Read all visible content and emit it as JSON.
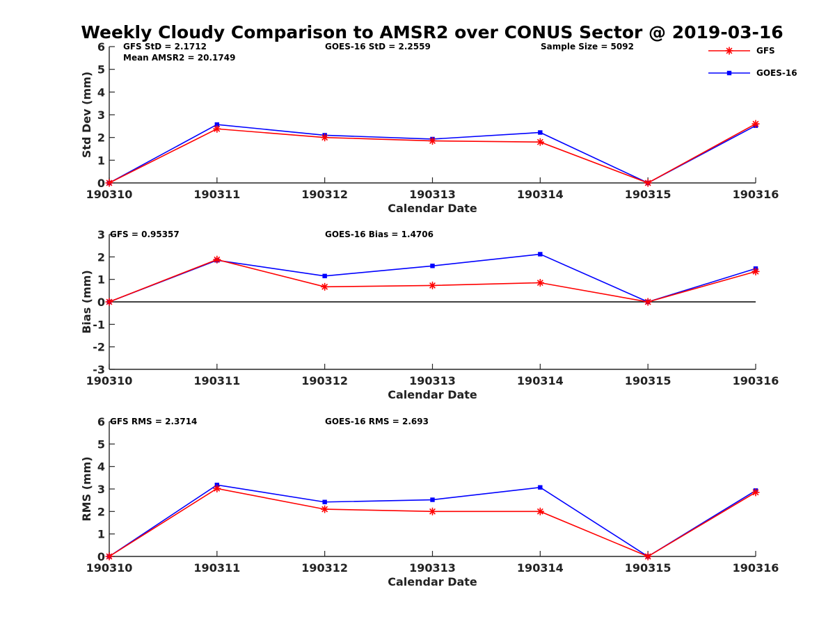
{
  "chart_data": {
    "title": "Weekly Cloudy Comparison to AMSR2 over CONUS Sector @ 2019-03-16",
    "type": "line",
    "legend": {
      "position": "top-right",
      "entries": [
        {
          "name": "GFS",
          "color": "#ff0000",
          "marker": "asterisk"
        },
        {
          "name": "GOES-16",
          "color": "#0000ff",
          "marker": "square"
        }
      ]
    },
    "panels": [
      {
        "type": "line",
        "xlabel": "Calendar Date",
        "ylabel": "Std Dev (mm)",
        "x": [
          "190310",
          "190311",
          "190312",
          "190313",
          "190314",
          "190315",
          "190316"
        ],
        "ylim": [
          0,
          6
        ],
        "yticks": [
          "0",
          "1",
          "2",
          "3",
          "4",
          "5",
          "6"
        ],
        "zero_line": false,
        "annotations": {
          "gfs": "GFS StD = 2.1712",
          "amsr2": "Mean AMSR2 = 20.1749",
          "goes": "GOES-16 StD = 2.2559",
          "sample": "Sample Size = 5092"
        },
        "series": [
          {
            "name": "GFS",
            "color": "#ff0000",
            "marker": "asterisk",
            "values": [
              0,
              2.38,
              2.0,
              1.85,
              1.8,
              0,
              2.6
            ]
          },
          {
            "name": "GOES-16",
            "color": "#0000ff",
            "marker": "square",
            "values": [
              0,
              2.57,
              2.1,
              1.93,
              2.22,
              0,
              2.52
            ]
          }
        ]
      },
      {
        "type": "line",
        "xlabel": "Calendar Date",
        "ylabel": "Bias (mm)",
        "x": [
          "190310",
          "190311",
          "190312",
          "190313",
          "190314",
          "190315",
          "190316"
        ],
        "ylim": [
          -3,
          3
        ],
        "yticks": [
          "-3",
          "-2",
          "-1",
          "0",
          "1",
          "2",
          "3"
        ],
        "zero_line": true,
        "annotations": {
          "gfs": "GFS = 0.95357",
          "goes": "GOES-16 Bias  = 1.4706"
        },
        "series": [
          {
            "name": "GFS",
            "color": "#ff0000",
            "marker": "asterisk",
            "values": [
              0,
              1.88,
              0.67,
              0.73,
              0.85,
              0,
              1.35
            ]
          },
          {
            "name": "GOES-16",
            "color": "#0000ff",
            "marker": "square",
            "values": [
              0,
              1.85,
              1.15,
              1.6,
              2.12,
              0,
              1.48
            ]
          }
        ]
      },
      {
        "type": "line",
        "xlabel": "Calendar Date",
        "ylabel": "RMS (mm)",
        "x": [
          "190310",
          "190311",
          "190312",
          "190313",
          "190314",
          "190315",
          "190316"
        ],
        "ylim": [
          0,
          6
        ],
        "yticks": [
          "0",
          "1",
          "2",
          "3",
          "4",
          "5",
          "6"
        ],
        "zero_line": false,
        "annotations": {
          "gfs": "GFS RMS = 2.3714",
          "goes": "GOES-16 RMS = 2.693"
        },
        "series": [
          {
            "name": "GFS",
            "color": "#ff0000",
            "marker": "asterisk",
            "values": [
              0,
              3.02,
              2.1,
              2.0,
              2.0,
              0,
              2.85
            ]
          },
          {
            "name": "GOES-16",
            "color": "#0000ff",
            "marker": "square",
            "values": [
              0,
              3.18,
              2.42,
              2.52,
              3.07,
              0,
              2.93
            ]
          }
        ]
      }
    ]
  }
}
